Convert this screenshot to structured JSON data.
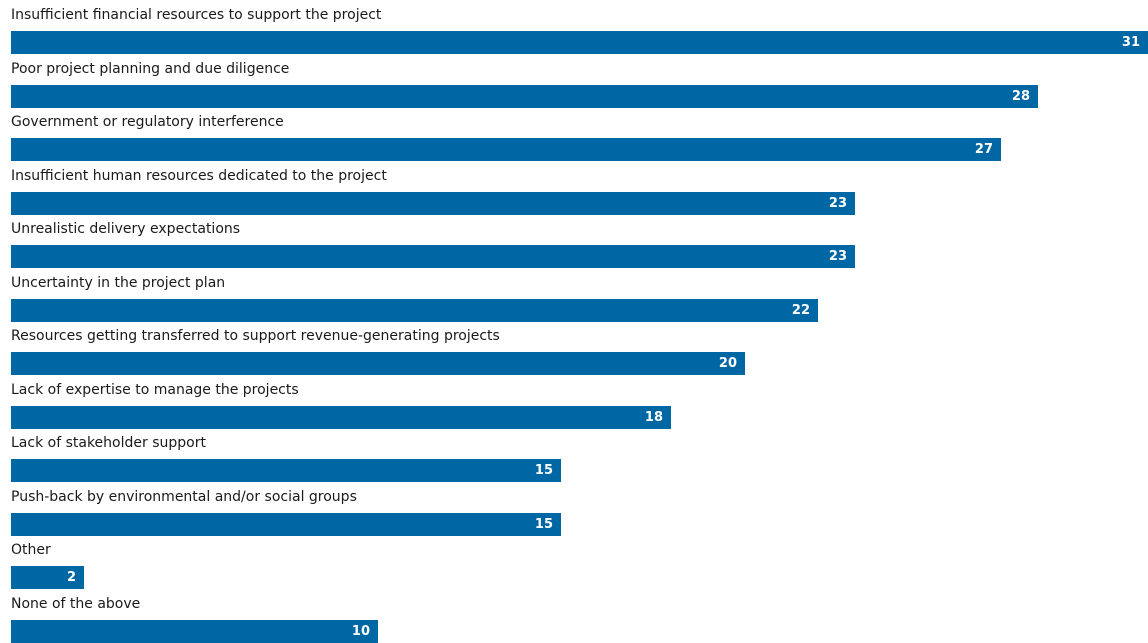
{
  "chart_data": {
    "type": "bar",
    "orientation": "horizontal",
    "categories": [
      "Insufficient financial resources to support the project",
      "Poor project planning and due diligence",
      "Government or regulatory interference",
      "Insufficient human resources dedicated to the project",
      "Unrealistic delivery expectations",
      "Uncertainty in the project plan",
      "Resources getting transferred to support revenue-generating projects",
      "Lack of expertise to manage the projects",
      "Lack of stakeholder support",
      "Push-back by environmental and/or social groups",
      "Other",
      "None of the above"
    ],
    "values": [
      31,
      28,
      27,
      23,
      23,
      22,
      20,
      18,
      15,
      15,
      2,
      10
    ],
    "data_labels": [
      "31",
      "28",
      "27",
      "23",
      "23",
      "22",
      "20",
      "18",
      "15",
      "15",
      "2",
      "10"
    ],
    "title": "",
    "xlabel": "",
    "ylabel": "",
    "xlim": [
      0,
      31
    ],
    "grid": false,
    "legend": "none",
    "bar_color": "#0067a5",
    "label_color": "#ffffff"
  }
}
